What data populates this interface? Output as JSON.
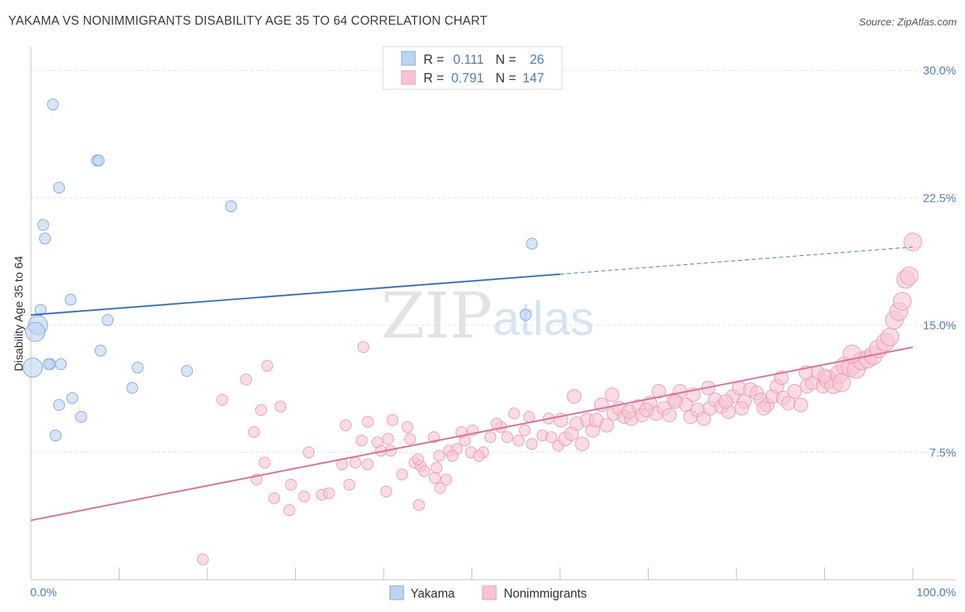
{
  "header": {
    "title": "YAKAMA VS NONIMMIGRANTS DISABILITY AGE 35 TO 64 CORRELATION CHART",
    "source": "Source: ZipAtlas.com"
  },
  "watermark": {
    "part1": "ZIP",
    "part2": "atlas"
  },
  "colors": {
    "yakama_fill": "#bcd4f2",
    "yakama_stroke": "#7aa6de",
    "yakama_line": "#2f72c8",
    "nonimm_fill": "#f6c4d3",
    "nonimm_stroke": "#ec98b4",
    "nonimm_line": "#e46b95",
    "axis_value": "#4a7fd0"
  },
  "chart_data": {
    "type": "scatter",
    "title": "YAKAMA VS NONIMMIGRANTS DISABILITY AGE 35 TO 64 CORRELATION CHART",
    "xlabel": "",
    "ylabel": "Disability Age 35 to 64",
    "xlim": [
      0,
      100
    ],
    "ylim": [
      0,
      31
    ],
    "x_tick_labels": [
      "0.0%",
      "100.0%"
    ],
    "y_ticks": [
      7.5,
      15.0,
      22.5,
      30.0
    ],
    "y_tick_labels": [
      "7.5%",
      "15.0%",
      "22.5%",
      "30.0%"
    ],
    "legend_stats": [
      {
        "r_label": "R =",
        "r_value": "0.111",
        "n_label": "N =",
        "n_value": "26"
      },
      {
        "r_label": "R =",
        "r_value": "0.791",
        "n_label": "N =",
        "n_value": "147"
      }
    ],
    "series": [
      {
        "name": "Yakama",
        "trend": {
          "x0": 0,
          "y0": 15.6,
          "x1": 60,
          "y1": 18.0,
          "dashed_to_x": 100,
          "dashed_to_y": 19.6
        },
        "points": [
          [
            2.5,
            28.0
          ],
          [
            7.5,
            24.7
          ],
          [
            7.7,
            24.7
          ],
          [
            3.2,
            23.1
          ],
          [
            22.7,
            22.0
          ],
          [
            1.4,
            20.9
          ],
          [
            1.6,
            20.1
          ],
          [
            56.8,
            19.8
          ],
          [
            4.5,
            16.5
          ],
          [
            1.1,
            15.9
          ],
          [
            0.8,
            15.0
          ],
          [
            8.7,
            15.3
          ],
          [
            56.1,
            15.6
          ],
          [
            0.5,
            14.6
          ],
          [
            0.2,
            12.5
          ],
          [
            2.2,
            12.7
          ],
          [
            7.9,
            13.5
          ],
          [
            2.0,
            12.7
          ],
          [
            3.4,
            12.7
          ],
          [
            12.1,
            12.5
          ],
          [
            17.7,
            12.3
          ],
          [
            11.5,
            11.3
          ],
          [
            4.7,
            10.7
          ],
          [
            3.2,
            10.3
          ],
          [
            5.7,
            9.6
          ],
          [
            2.8,
            8.5
          ]
        ]
      },
      {
        "name": "Nonimmigrants",
        "trend": {
          "x0": 0,
          "y0": 3.5,
          "x1": 100,
          "y1": 13.7
        },
        "points": [
          [
            19.5,
            1.2
          ],
          [
            37.7,
            13.7
          ],
          [
            26.8,
            12.6
          ],
          [
            24.4,
            11.8
          ],
          [
            21.7,
            10.6
          ],
          [
            26.1,
            10.0
          ],
          [
            28.3,
            10.2
          ],
          [
            25.3,
            8.7
          ],
          [
            31.5,
            7.5
          ],
          [
            35.7,
            9.1
          ],
          [
            38.2,
            9.3
          ],
          [
            41.0,
            9.4
          ],
          [
            42.7,
            9.0
          ],
          [
            37.5,
            8.2
          ],
          [
            39.3,
            8.1
          ],
          [
            40.5,
            8.3
          ],
          [
            39.7,
            7.6
          ],
          [
            40.8,
            7.6
          ],
          [
            43.0,
            8.3
          ],
          [
            45.7,
            8.4
          ],
          [
            26.5,
            6.9
          ],
          [
            25.6,
            5.9
          ],
          [
            29.5,
            5.6
          ],
          [
            27.6,
            4.8
          ],
          [
            31.0,
            4.9
          ],
          [
            29.3,
            4.1
          ],
          [
            33.0,
            5.0
          ],
          [
            33.8,
            5.1
          ],
          [
            36.1,
            5.6
          ],
          [
            40.3,
            5.2
          ],
          [
            35.3,
            6.8
          ],
          [
            36.8,
            6.9
          ],
          [
            38.2,
            6.8
          ],
          [
            43.5,
            6.9
          ],
          [
            44.2,
            6.7
          ],
          [
            44.6,
            6.4
          ],
          [
            46.0,
            6.6
          ],
          [
            45.8,
            6.0
          ],
          [
            46.4,
            5.4
          ],
          [
            47.1,
            5.9
          ],
          [
            44.0,
            4.4
          ],
          [
            46.3,
            7.3
          ],
          [
            47.4,
            7.6
          ],
          [
            48.3,
            7.7
          ],
          [
            49.2,
            8.2
          ],
          [
            49.9,
            7.5
          ],
          [
            51.3,
            7.5
          ],
          [
            50.8,
            7.3
          ],
          [
            52.1,
            8.4
          ],
          [
            53.3,
            9.0
          ],
          [
            54.0,
            8.4
          ],
          [
            55.3,
            8.2
          ],
          [
            54.8,
            9.8
          ],
          [
            56.5,
            9.6
          ],
          [
            56.0,
            8.8
          ],
          [
            56.8,
            8.0
          ],
          [
            58.0,
            8.5
          ],
          [
            59.0,
            8.4
          ],
          [
            58.7,
            9.5
          ],
          [
            59.8,
            7.9
          ],
          [
            60.6,
            8.3
          ],
          [
            61.3,
            8.6
          ],
          [
            61.6,
            10.8
          ],
          [
            61.9,
            9.2
          ],
          [
            63.1,
            9.4
          ],
          [
            63.7,
            8.8
          ],
          [
            64.1,
            9.4
          ],
          [
            64.7,
            10.3
          ],
          [
            65.3,
            9.1
          ],
          [
            66.1,
            9.8
          ],
          [
            66.7,
            10.1
          ],
          [
            67.3,
            9.6
          ],
          [
            68.1,
            9.5
          ],
          [
            68.9,
            10.2
          ],
          [
            69.3,
            9.7
          ],
          [
            70.2,
            10.4
          ],
          [
            70.9,
            9.8
          ],
          [
            71.8,
            10.1
          ],
          [
            72.4,
            9.7
          ],
          [
            72.9,
            10.6
          ],
          [
            73.6,
            11.1
          ],
          [
            74.3,
            10.3
          ],
          [
            74.8,
            9.6
          ],
          [
            75.6,
            10.0
          ],
          [
            76.3,
            9.5
          ],
          [
            77.0,
            10.1
          ],
          [
            77.6,
            10.6
          ],
          [
            78.3,
            10.2
          ],
          [
            79.1,
            9.9
          ],
          [
            79.6,
            10.8
          ],
          [
            80.3,
            11.3
          ],
          [
            80.9,
            10.5
          ],
          [
            81.6,
            11.2
          ],
          [
            82.3,
            11.0
          ],
          [
            82.8,
            10.6
          ],
          [
            83.5,
            10.3
          ],
          [
            84.1,
            10.8
          ],
          [
            84.6,
            11.4
          ],
          [
            85.3,
            10.7
          ],
          [
            85.9,
            10.4
          ],
          [
            86.6,
            11.1
          ],
          [
            87.3,
            10.3
          ],
          [
            88.0,
            11.4
          ],
          [
            88.6,
            11.6
          ],
          [
            89.2,
            12.2
          ],
          [
            89.8,
            11.4
          ],
          [
            90.4,
            11.8
          ],
          [
            91.0,
            11.5
          ],
          [
            91.6,
            12.1
          ],
          [
            92.3,
            12.6
          ],
          [
            92.9,
            12.5
          ],
          [
            93.6,
            12.4
          ],
          [
            94.2,
            12.9
          ],
          [
            94.9,
            13.0
          ],
          [
            95.5,
            13.2
          ],
          [
            96.1,
            13.6
          ],
          [
            96.9,
            14.0
          ],
          [
            97.4,
            14.3
          ],
          [
            97.9,
            15.3
          ],
          [
            98.4,
            15.8
          ],
          [
            98.8,
            16.4
          ],
          [
            99.2,
            17.7
          ],
          [
            99.6,
            17.9
          ],
          [
            100.0,
            19.9
          ],
          [
            50.1,
            8.8
          ],
          [
            52.8,
            9.2
          ],
          [
            48.8,
            8.7
          ],
          [
            47.8,
            7.3
          ],
          [
            42.1,
            6.2
          ],
          [
            43.9,
            7.1
          ],
          [
            60.1,
            9.4
          ],
          [
            62.5,
            8.0
          ],
          [
            65.9,
            10.9
          ],
          [
            67.8,
            9.9
          ],
          [
            69.8,
            10.0
          ],
          [
            71.2,
            11.1
          ],
          [
            73.1,
            10.5
          ],
          [
            75.1,
            10.9
          ],
          [
            76.8,
            11.3
          ],
          [
            78.8,
            10.5
          ],
          [
            80.6,
            10.1
          ],
          [
            83.1,
            10.1
          ],
          [
            85.1,
            11.9
          ],
          [
            87.9,
            12.2
          ],
          [
            90.0,
            12.0
          ],
          [
            91.9,
            11.6
          ],
          [
            93.1,
            13.3
          ]
        ]
      }
    ]
  },
  "legend": {
    "items": [
      "Yakama",
      "Nonimmigrants"
    ]
  }
}
